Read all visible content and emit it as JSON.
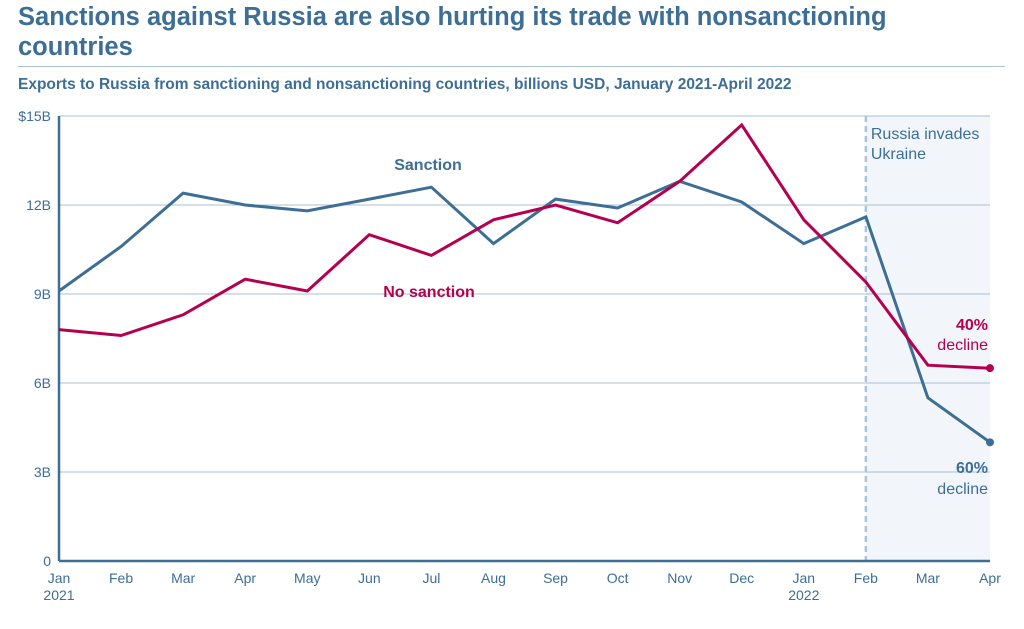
{
  "header": {
    "title": "Sanctions against Russia are also hurting its trade with nonsanctioning countries",
    "subtitle": "Exports to Russia from sanctioning and nonsanctioning countries, billions USD, January 2021-April 2022"
  },
  "colors": {
    "sanction": "#3d6e96",
    "no_sanction": "#b5004f",
    "grid": "#a9bfd2",
    "shade": "#f2f6fa",
    "marker": "#a9c5dc"
  },
  "chart_data": {
    "type": "line",
    "title": "Sanctions against Russia are also hurting its trade with nonsanctioning countries",
    "subtitle": "Exports to Russia from sanctioning and nonsanctioning countries, billions USD, January 2021-April 2022",
    "x": [
      "Jan 2021",
      "Feb",
      "Mar",
      "Apr",
      "May",
      "Jun",
      "Jul",
      "Aug",
      "Sep",
      "Oct",
      "Nov",
      "Dec",
      "Jan 2022",
      "Feb",
      "Mar",
      "Apr"
    ],
    "x_tick_labels": [
      {
        "line1": "Jan",
        "line2": "2021"
      },
      {
        "line1": "Feb",
        "line2": ""
      },
      {
        "line1": "Mar",
        "line2": ""
      },
      {
        "line1": "Apr",
        "line2": ""
      },
      {
        "line1": "May",
        "line2": ""
      },
      {
        "line1": "Jun",
        "line2": ""
      },
      {
        "line1": "Jul",
        "line2": ""
      },
      {
        "line1": "Aug",
        "line2": ""
      },
      {
        "line1": "Sep",
        "line2": ""
      },
      {
        "line1": "Oct",
        "line2": ""
      },
      {
        "line1": "Nov",
        "line2": ""
      },
      {
        "line1": "Dec",
        "line2": ""
      },
      {
        "line1": "Jan",
        "line2": "2022"
      },
      {
        "line1": "Feb",
        "line2": ""
      },
      {
        "line1": "Mar",
        "line2": ""
      },
      {
        "line1": "Apr",
        "line2": ""
      }
    ],
    "ylim": [
      0,
      15
    ],
    "y_ticks": [
      0,
      3,
      6,
      9,
      12,
      15
    ],
    "y_tick_labels": [
      "0",
      "3B",
      "6B",
      "9B",
      "12B",
      "$15B"
    ],
    "grid": true,
    "series": [
      {
        "name": "Sanction",
        "key": "sanction",
        "values": [
          9.1,
          10.6,
          12.4,
          12.0,
          11.8,
          12.2,
          12.6,
          10.7,
          12.2,
          11.9,
          12.8,
          12.1,
          10.7,
          11.6,
          5.5,
          4.0
        ]
      },
      {
        "name": "No sanction",
        "key": "no_sanction",
        "values": [
          7.8,
          7.6,
          8.3,
          9.5,
          9.1,
          11.0,
          10.3,
          11.5,
          12.0,
          11.4,
          12.8,
          14.7,
          11.5,
          9.4,
          6.6,
          6.5
        ]
      }
    ],
    "annotations": {
      "event_line1": "Russia invades",
      "event_line2": "Ukraine",
      "event_index": 13,
      "no_sanction_pct": "40%",
      "no_sanction_word": "decline",
      "sanction_pct": "60%",
      "sanction_word": "decline"
    }
  }
}
